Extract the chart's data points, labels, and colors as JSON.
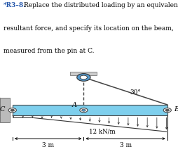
{
  "bg_color": "#ffffff",
  "beam_color": "#7ecfed",
  "beam_outline": "#4a4a4a",
  "title_bold": "*R3–8.",
  "title_text": "  Replace the distributed loading by an equivalent\nresultant force, and specify its location on the beam,\nmeasured from the pin at C.",
  "label_C": "C",
  "label_A": "A",
  "label_B": "B",
  "label_30": "30°",
  "dist_load_label": "12 kN/m",
  "dim_left_label": "3 m",
  "dim_right_label": "3 m",
  "rope_color": "#444444",
  "arrow_color": "#333333",
  "wall_color": "#bbbbbb"
}
